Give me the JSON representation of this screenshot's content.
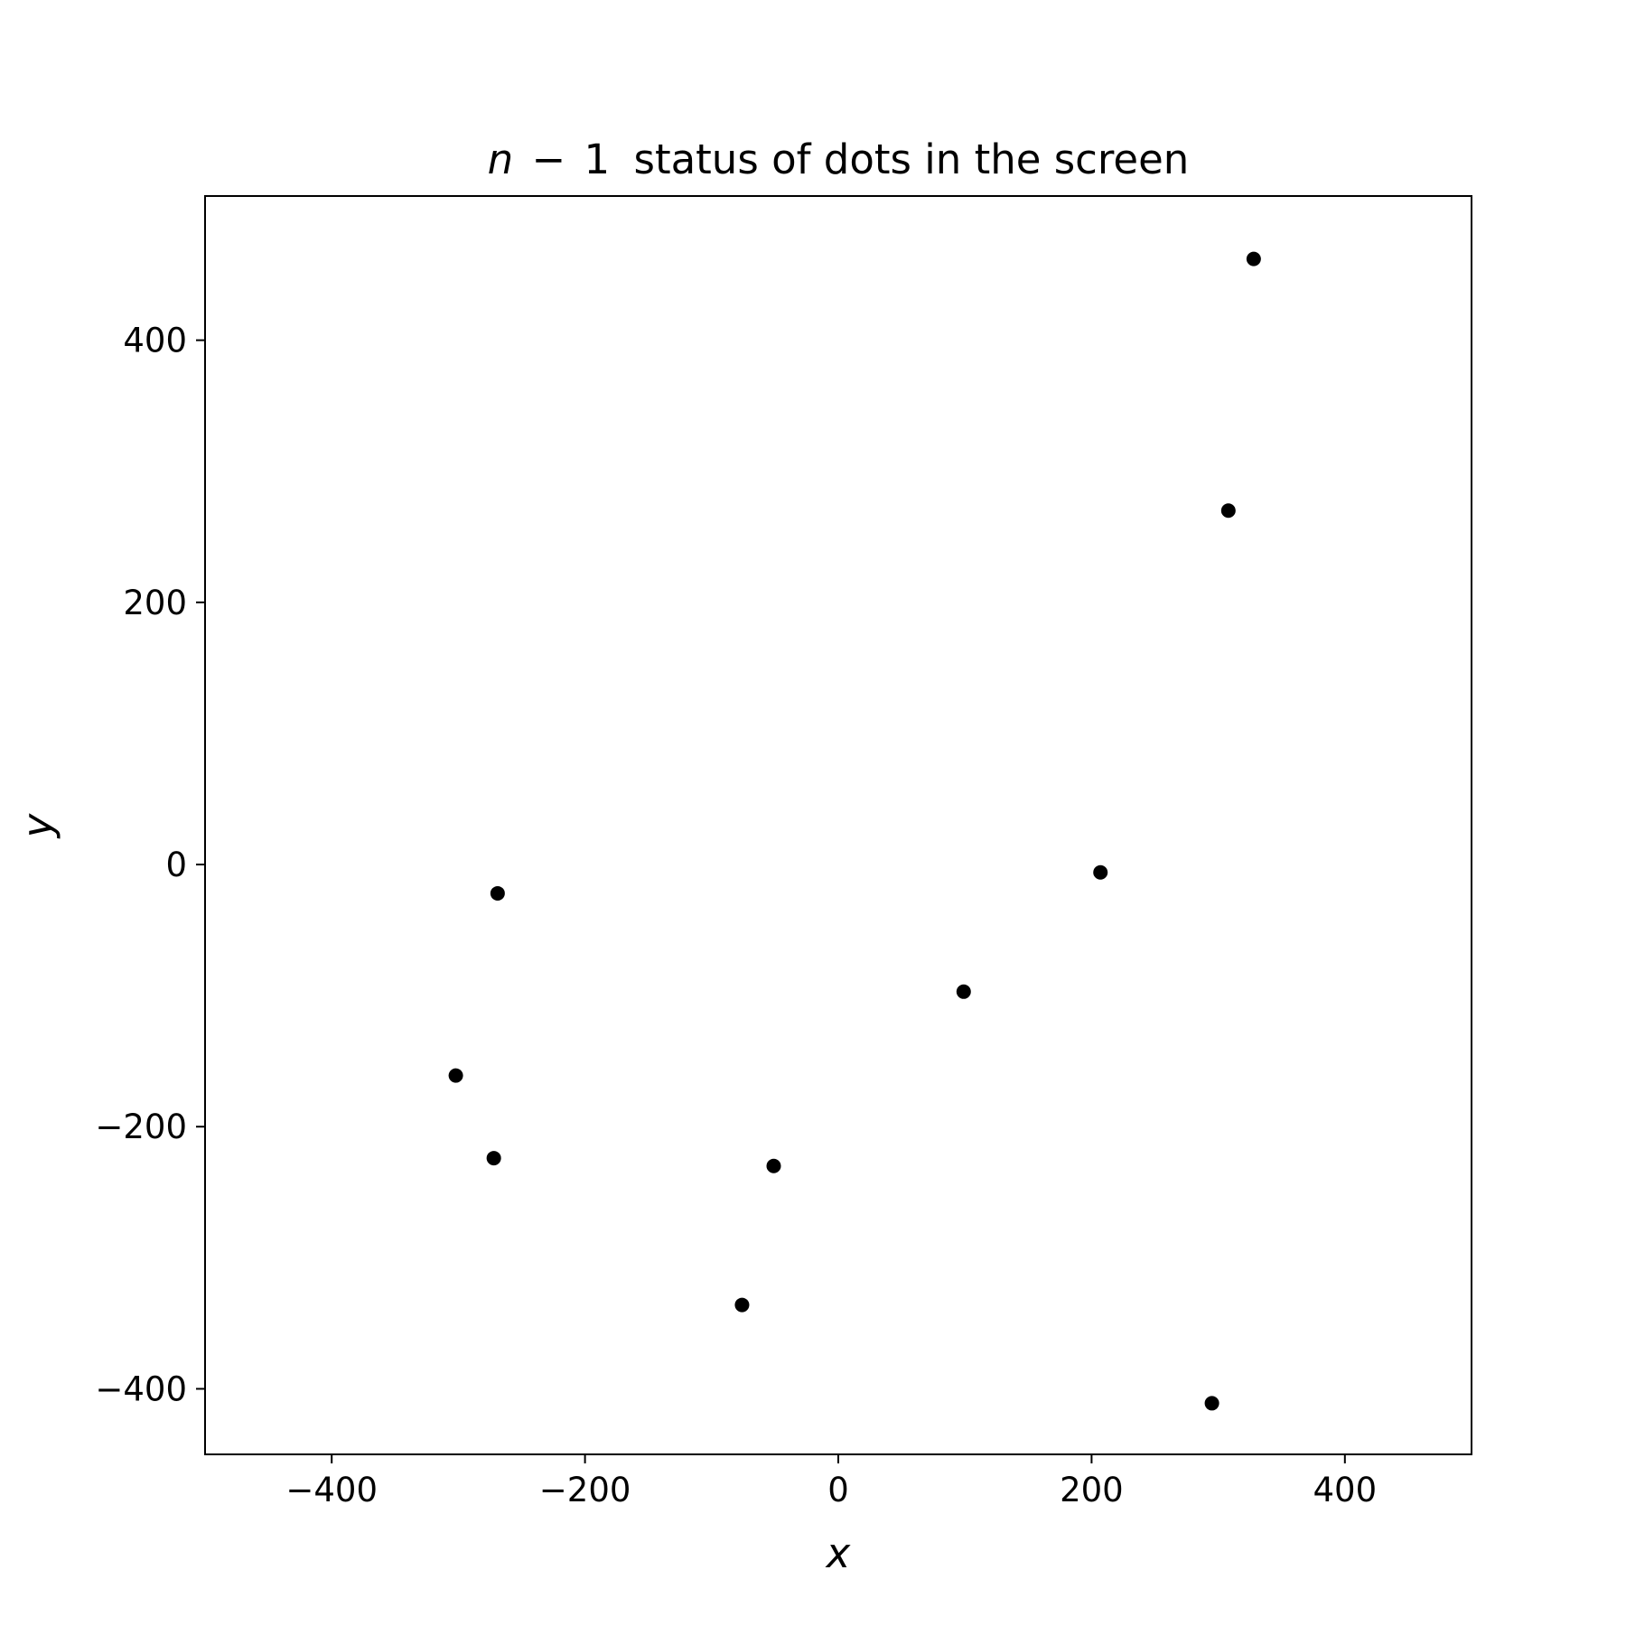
{
  "chart_data": {
    "type": "scatter",
    "title": {
      "math_var": "n",
      "math_op": "−",
      "math_num": "1",
      "text": "status of dots in the screen"
    },
    "xlabel": "x",
    "ylabel": "y",
    "xlim": [
      -500,
      500
    ],
    "ylim": [
      -450,
      510
    ],
    "xticks": [
      -400,
      -200,
      0,
      200,
      400
    ],
    "yticks": [
      -400,
      -200,
      0,
      200,
      400
    ],
    "xtick_labels": [
      "−400",
      "−200",
      "0",
      "200",
      "400"
    ],
    "ytick_labels": [
      "−400",
      "−200",
      "0",
      "200",
      "400"
    ],
    "grid": false,
    "marker_color": "#000000",
    "series": [
      {
        "points": [
          {
            "x": 328,
            "y": 462
          },
          {
            "x": 308,
            "y": 270
          },
          {
            "x": 207,
            "y": -6
          },
          {
            "x": 99,
            "y": -97
          },
          {
            "x": -269,
            "y": -22
          },
          {
            "x": -302,
            "y": -161
          },
          {
            "x": -272,
            "y": -224
          },
          {
            "x": -51,
            "y": -230
          },
          {
            "x": -76,
            "y": -336
          },
          {
            "x": 295,
            "y": -411
          }
        ]
      }
    ]
  }
}
